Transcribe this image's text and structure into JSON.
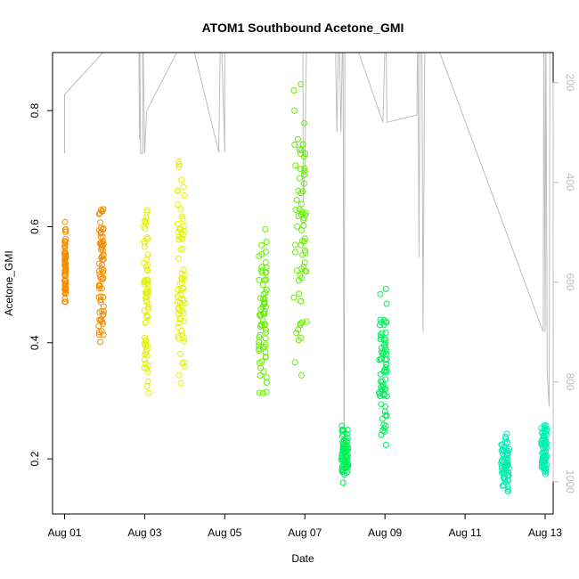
{
  "chart_data": {
    "type": "scatter",
    "title": "ATOM1 Southbound Acetone_GMI",
    "xlabel": "Date",
    "ylabel": "Acetone_GMI",
    "xlim": [
      -0.3,
      12.2
    ],
    "ylim": [
      0.105,
      0.9
    ],
    "xticks": [
      {
        "x": 0,
        "label": "Aug 01"
      },
      {
        "x": 2,
        "label": "Aug 03"
      },
      {
        "x": 4,
        "label": "Aug 05"
      },
      {
        "x": 6,
        "label": "Aug 07"
      },
      {
        "x": 8,
        "label": "Aug 09"
      },
      {
        "x": 10,
        "label": "Aug 11"
      },
      {
        "x": 12,
        "label": "Aug 13"
      }
    ],
    "yticks": [
      0.2,
      0.4,
      0.6,
      0.8
    ],
    "y2lim": [
      1065,
      140
    ],
    "y2ticks": [
      200,
      400,
      600,
      800,
      1000
    ],
    "grid": false,
    "pressure_trace": [
      [
        0,
        342
      ],
      [
        0,
        224
      ],
      [
        1.05,
        132
      ],
      [
        1.85,
        60
      ],
      [
        1.87,
        315
      ],
      [
        1.87,
        60
      ],
      [
        1.9,
        342
      ],
      [
        1.95,
        342
      ],
      [
        1.95,
        60
      ],
      [
        2.0,
        342
      ],
      [
        2.05,
        257
      ],
      [
        2.8,
        140
      ],
      [
        3.0,
        60
      ],
      [
        3.85,
        340
      ],
      [
        3.9,
        60
      ],
      [
        4.0,
        340
      ],
      [
        4.0,
        60
      ],
      [
        5.0,
        60
      ],
      [
        5.95,
        60
      ],
      [
        5.96,
        440
      ],
      [
        6.0,
        380
      ],
      [
        6.05,
        60
      ],
      [
        6.75,
        60
      ],
      [
        6.8,
        300
      ],
      [
        6.85,
        60
      ],
      [
        6.9,
        300
      ],
      [
        6.95,
        60
      ],
      [
        6.98,
        1010
      ],
      [
        7.0,
        60
      ],
      [
        7.95,
        280
      ],
      [
        8.02,
        60
      ],
      [
        8.05,
        280
      ],
      [
        8.8,
        265
      ],
      [
        8.82,
        60
      ],
      [
        8.85,
        550
      ],
      [
        8.88,
        60
      ],
      [
        8.92,
        60
      ],
      [
        8.95,
        700
      ],
      [
        9.0,
        60
      ],
      [
        11.95,
        700
      ],
      [
        11.97,
        60
      ],
      [
        12.0,
        700
      ],
      [
        12.02,
        60
      ],
      [
        12.05,
        780
      ],
      [
        12.1,
        850
      ],
      [
        12.12,
        60
      ],
      [
        12.95,
        720
      ],
      [
        12.98,
        60
      ]
    ],
    "series": [
      {
        "color": "#f28c00",
        "clusters": [
          {
            "x": [
              0.0,
              0.03
            ],
            "y": [
              0.44,
              0.61
            ]
          },
          {
            "x": [
              0.85,
              0.98
            ],
            "y": [
              0.4,
              0.655
            ]
          }
        ]
      },
      {
        "color": "#e2f200",
        "clusters": [
          {
            "x": [
              1.98,
              2.1
            ],
            "y": [
              0.29,
              0.655
            ]
          },
          {
            "x": [
              2.82,
              3.0
            ],
            "y": [
              0.31,
              0.73
            ]
          }
        ]
      },
      {
        "color": "#66ee00",
        "clusters": [
          {
            "x": [
              4.85,
              5.05
            ],
            "y": [
              0.29,
              0.62
            ]
          },
          {
            "x": [
              5.72,
              6.05
            ],
            "y": [
              0.31,
              0.87
            ]
          }
        ]
      },
      {
        "color": "#00f05a",
        "clusters": [
          {
            "x": [
              6.92,
              7.08
            ],
            "y": [
              0.155,
              0.265
            ]
          },
          {
            "x": [
              7.85,
              8.05
            ],
            "y": [
              0.19,
              0.505
            ]
          }
        ]
      },
      {
        "color": "#00f0b0",
        "clusters": [
          {
            "x": [
              10.9,
              11.1
            ],
            "y": [
              0.135,
              0.245
            ]
          },
          {
            "x": [
              11.9,
              12.05
            ],
            "y": [
              0.17,
              0.265
            ]
          }
        ]
      }
    ]
  }
}
